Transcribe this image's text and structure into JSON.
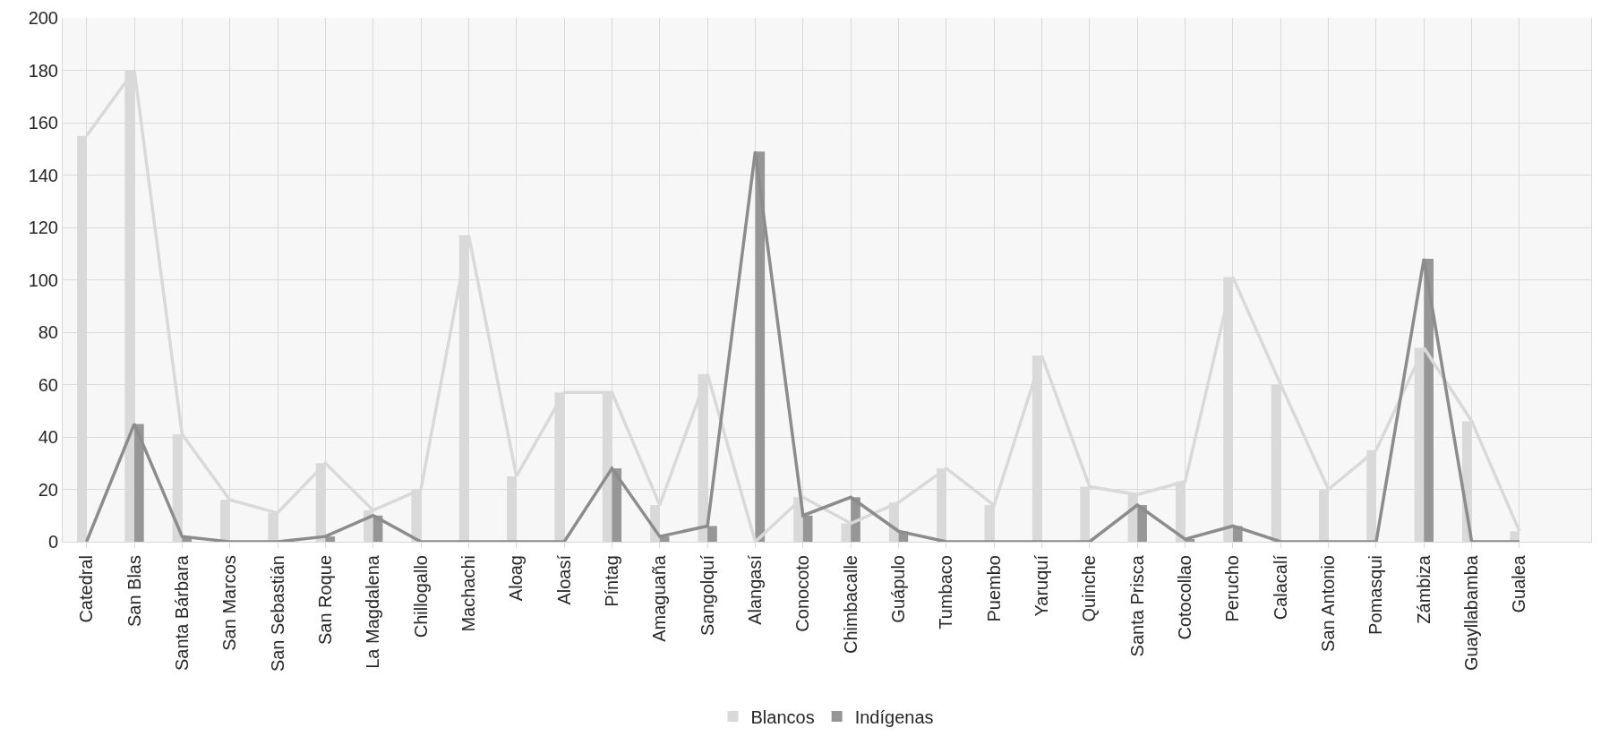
{
  "chart_data": {
    "type": "bar",
    "categories": [
      "Catedral",
      "San Blas",
      "Santa Bárbara",
      "San Marcos",
      "San Sebastián",
      "San Roque",
      "La Magdalena",
      "Chillogallo",
      "Machachi",
      "Aloag",
      "Aloasí",
      "Píntag",
      "Amaguaña",
      "Sangolquí",
      "Alangasí",
      "Conocoto",
      "Chimbacalle",
      "Guápulo",
      "Tumbaco",
      "Puembo",
      "Yaruquí",
      "Quinche",
      "Santa Prisca",
      "Cotocollao",
      "Perucho",
      "Calacalí",
      "San Antonio",
      "Pomasqui",
      "Zámbiza",
      "Guayllabamba",
      "Gualea",
      null
    ],
    "series": [
      {
        "name": "Blancos",
        "color": "#d9d9d9",
        "values": [
          155,
          180,
          41,
          16,
          11,
          30,
          12,
          20,
          117,
          25,
          57,
          57,
          14,
          64,
          0,
          17,
          7,
          15,
          28,
          14,
          71,
          21,
          18,
          23,
          101,
          60,
          20,
          35,
          74,
          46,
          4,
          null
        ]
      },
      {
        "name": "Indígenas",
        "color": "#969696",
        "values": [
          0,
          45,
          2,
          0,
          0,
          2,
          10,
          0,
          0,
          0,
          0,
          28,
          2,
          6,
          149,
          10,
          17,
          4,
          0,
          0,
          0,
          0,
          14,
          1,
          6,
          0,
          0,
          0,
          108,
          0,
          0,
          null
        ]
      },
      {
        "type": "line",
        "color": "#d9d9d9",
        "values": [
          155,
          180,
          41,
          16,
          11,
          30,
          12,
          20,
          117,
          25,
          57,
          57,
          14,
          64,
          0,
          17,
          7,
          15,
          28,
          14,
          71,
          21,
          18,
          23,
          101,
          60,
          20,
          35,
          74,
          46,
          4,
          null
        ]
      },
      {
        "type": "line",
        "color": "#8c8c8c",
        "values": [
          0,
          45,
          2,
          0,
          0,
          2,
          10,
          0,
          0,
          0,
          0,
          28,
          2,
          6,
          149,
          10,
          17,
          4,
          0,
          0,
          0,
          0,
          14,
          1,
          6,
          0,
          0,
          0,
          108,
          0,
          0,
          null
        ]
      }
    ],
    "ylim": [
      0,
      200
    ],
    "yticks": [
      0,
      20,
      40,
      60,
      80,
      100,
      120,
      140,
      160,
      180,
      200
    ],
    "grid": true,
    "legend": "bottom",
    "marker": "none",
    "line_style": "solid"
  }
}
